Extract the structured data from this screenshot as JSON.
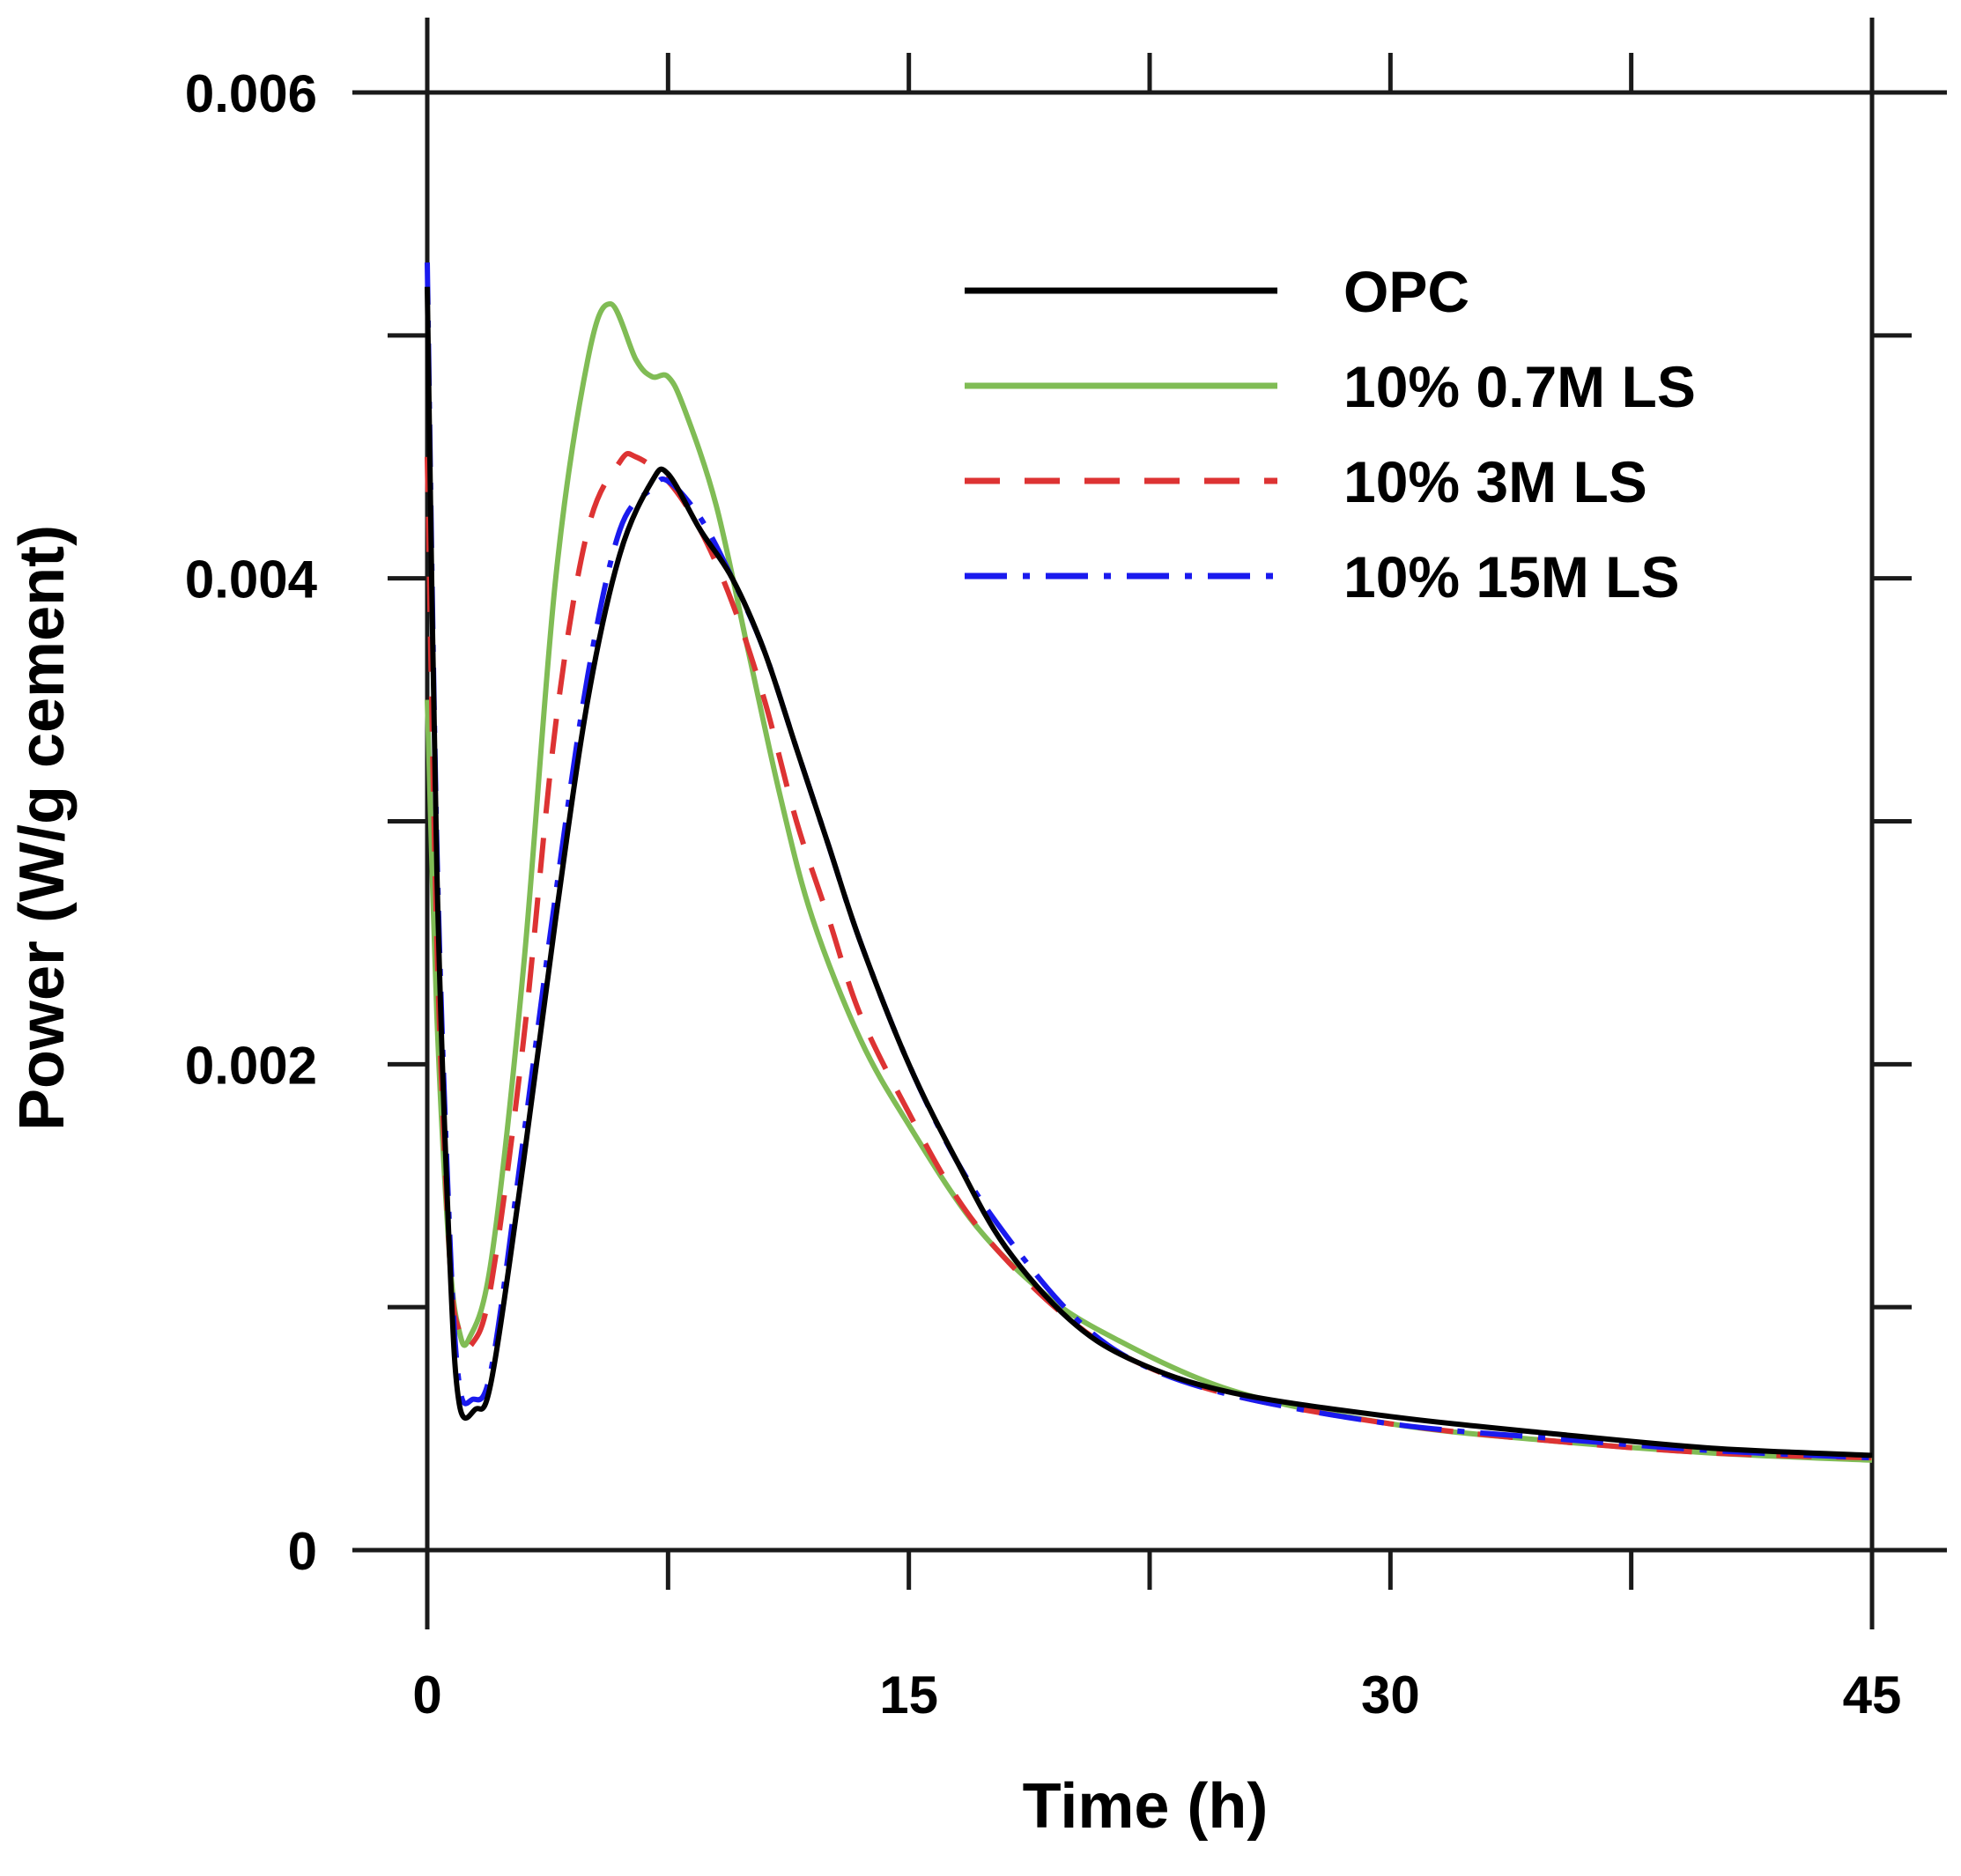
{
  "chart_data": {
    "type": "line",
    "title": "",
    "xlabel": "Time (h)",
    "ylabel": "Power (W/g cement)",
    "xlim": [
      0,
      45
    ],
    "ylim": [
      0,
      0.006
    ],
    "xticks": [
      0,
      7.5,
      15,
      22.5,
      30,
      37.5,
      45
    ],
    "xtick_labels": [
      "0",
      "",
      "15",
      "",
      "30",
      "",
      "45"
    ],
    "yticks": [
      0,
      0.001,
      0.002,
      0.003,
      0.004,
      0.005,
      0.006
    ],
    "ytick_labels": [
      "0",
      "",
      "0.002",
      "",
      "0.004",
      "",
      "0.006"
    ],
    "grid": false,
    "legend_position": "top-right",
    "series": [
      {
        "name": "OPC",
        "color": "#000000",
        "dash": "solid",
        "points": [
          [
            0,
            0.0052
          ],
          [
            0.3,
            0.0028
          ],
          [
            0.7,
            0.0012
          ],
          [
            1.0,
            0.0006
          ],
          [
            1.5,
            0.00058
          ],
          [
            2.0,
            0.0007
          ],
          [
            3.0,
            0.0016
          ],
          [
            4.0,
            0.0026
          ],
          [
            5.0,
            0.0035
          ],
          [
            6.0,
            0.0041
          ],
          [
            7.0,
            0.0044
          ],
          [
            7.5,
            0.00443
          ],
          [
            8.5,
            0.0042
          ],
          [
            9.5,
            0.004
          ],
          [
            10.5,
            0.0037
          ],
          [
            11.5,
            0.0033
          ],
          [
            12.5,
            0.0029
          ],
          [
            13.5,
            0.0025
          ],
          [
            15.0,
            0.002
          ],
          [
            16.5,
            0.0016
          ],
          [
            18.0,
            0.00125
          ],
          [
            20.0,
            0.00095
          ],
          [
            22.0,
            0.00078
          ],
          [
            25.0,
            0.00065
          ],
          [
            30.0,
            0.00055
          ],
          [
            35.0,
            0.00048
          ],
          [
            40.0,
            0.00042
          ],
          [
            45.0,
            0.00039
          ]
        ]
      },
      {
        "name": "10% 0.7M LS",
        "color": "#80bc55",
        "dash": "solid",
        "points": [
          [
            0,
            0.0035
          ],
          [
            0.3,
            0.0022
          ],
          [
            0.7,
            0.0012
          ],
          [
            1.0,
            0.0009
          ],
          [
            1.3,
            0.00087
          ],
          [
            2.0,
            0.0012
          ],
          [
            3.0,
            0.0024
          ],
          [
            4.0,
            0.004
          ],
          [
            5.0,
            0.0049
          ],
          [
            5.7,
            0.00513
          ],
          [
            6.5,
            0.0049
          ],
          [
            7.0,
            0.00483
          ],
          [
            7.5,
            0.00483
          ],
          [
            8.0,
            0.0047
          ],
          [
            9.0,
            0.0043
          ],
          [
            10.0,
            0.0037
          ],
          [
            11.0,
            0.0031
          ],
          [
            12.0,
            0.0026
          ],
          [
            13.5,
            0.0021
          ],
          [
            15.0,
            0.00175
          ],
          [
            17.0,
            0.00135
          ],
          [
            19.0,
            0.00108
          ],
          [
            21.0,
            0.0009
          ],
          [
            25.0,
            0.00066
          ],
          [
            30.0,
            0.00052
          ],
          [
            35.0,
            0.00045
          ],
          [
            40.0,
            0.0004
          ],
          [
            45.0,
            0.00037
          ]
        ]
      },
      {
        "name": "10% 3M LS",
        "color": "#dd3333",
        "dash": "dashed",
        "points": [
          [
            0,
            0.0045
          ],
          [
            0.3,
            0.0025
          ],
          [
            0.7,
            0.0012
          ],
          [
            1.0,
            0.0009
          ],
          [
            1.4,
            0.00085
          ],
          [
            2.0,
            0.0011
          ],
          [
            3.0,
            0.0021
          ],
          [
            4.0,
            0.0034
          ],
          [
            5.0,
            0.0042
          ],
          [
            6.0,
            0.00448
          ],
          [
            6.5,
            0.0045
          ],
          [
            7.5,
            0.0044
          ],
          [
            8.5,
            0.0042
          ],
          [
            9.5,
            0.0039
          ],
          [
            10.5,
            0.0035
          ],
          [
            11.5,
            0.003
          ],
          [
            12.5,
            0.0026
          ],
          [
            13.5,
            0.0022
          ],
          [
            15.0,
            0.0018
          ],
          [
            16.5,
            0.00145
          ],
          [
            18.0,
            0.0012
          ],
          [
            20.0,
            0.00095
          ],
          [
            22.0,
            0.00078
          ],
          [
            25.0,
            0.00064
          ],
          [
            30.0,
            0.00052
          ],
          [
            35.0,
            0.00045
          ],
          [
            40.0,
            0.0004
          ],
          [
            45.0,
            0.00038
          ]
        ]
      },
      {
        "name": "10% 15M LS",
        "color": "#1a1aee",
        "dash": "dash-dot",
        "points": [
          [
            0,
            0.0053
          ],
          [
            0.3,
            0.0029
          ],
          [
            0.7,
            0.0013
          ],
          [
            1.0,
            0.00068
          ],
          [
            1.4,
            0.00062
          ],
          [
            2.0,
            0.00075
          ],
          [
            3.0,
            0.0017
          ],
          [
            4.0,
            0.0027
          ],
          [
            5.0,
            0.0036
          ],
          [
            6.0,
            0.0042
          ],
          [
            7.0,
            0.00437
          ],
          [
            7.5,
            0.0044
          ],
          [
            8.5,
            0.00425
          ],
          [
            9.5,
            0.004
          ],
          [
            10.5,
            0.0037
          ],
          [
            11.5,
            0.0033
          ],
          [
            12.5,
            0.0029
          ],
          [
            13.5,
            0.0025
          ],
          [
            15.0,
            0.002
          ],
          [
            16.5,
            0.0016
          ],
          [
            18.0,
            0.0013
          ],
          [
            20.0,
            0.00098
          ],
          [
            22.0,
            0.00078
          ],
          [
            25.0,
            0.00064
          ],
          [
            30.0,
            0.00052
          ],
          [
            35.0,
            0.00046
          ],
          [
            40.0,
            0.00041
          ],
          [
            45.0,
            0.00038
          ]
        ]
      }
    ]
  }
}
